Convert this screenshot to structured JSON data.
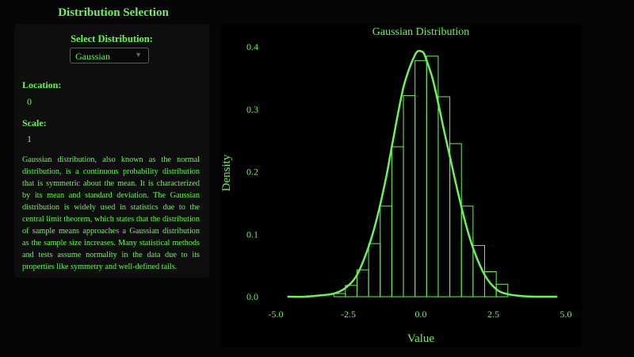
{
  "sidebar": {
    "title": "Distribution Selection",
    "select_label": "Select Distribution:",
    "selected_distribution": "Gaussian",
    "location_label": "Location:",
    "location_value": "0",
    "scale_label": "Scale:",
    "scale_value": "1",
    "description": "Gaussian distribution, also known as the normal distribution, is a continuous probability distribution that is symmetric about the mean. It is characterized by its mean and standard deviation. The Gaussian distribution is widely used in statistics due to the central limit theorem, which states that the distribution of sample means approaches a Gaussian distribution as the sample size increases. Many statistical methods and tests assume normality in the data due to its properties like symmetry and well-defined tails."
  },
  "icons": {
    "dropdown": "chevron-down-icon"
  },
  "colors": {
    "accent": "#6cf25a",
    "background": "#050505",
    "panel": "#0e0e0e"
  },
  "chart_data": {
    "type": "bar",
    "overlay": "line",
    "title": "Gaussian Distribution",
    "xlabel": "Value",
    "ylabel": "Density",
    "xlim": [
      -5.0,
      5.0
    ],
    "ylim": [
      0.0,
      0.4
    ],
    "xticks": [
      "-5.0",
      "-2.5",
      "0.0",
      "2.5",
      "5.0"
    ],
    "yticks": [
      "0.0",
      "0.1",
      "0.2",
      "0.3",
      "0.4"
    ],
    "grid": false,
    "histogram": {
      "bin_edges": [
        -3.0,
        -2.6,
        -2.2,
        -1.8,
        -1.4,
        -1.0,
        -0.6,
        -0.2,
        0.2,
        0.6,
        1.0,
        1.4,
        1.8,
        2.2,
        2.6,
        3.0
      ],
      "values": [
        0.005,
        0.018,
        0.043,
        0.085,
        0.145,
        0.24,
        0.322,
        0.378,
        0.385,
        0.32,
        0.245,
        0.145,
        0.082,
        0.04,
        0.02
      ]
    },
    "series": [
      {
        "x": [
          -4.6,
          -4.0,
          -3.5,
          -3.0,
          -2.6,
          -2.2,
          -1.8,
          -1.5,
          -1.2,
          -1.0,
          -0.8,
          -0.6,
          -0.4,
          -0.2,
          -0.1,
          0.0,
          0.1,
          0.2,
          0.4,
          0.6,
          0.8,
          1.0,
          1.2,
          1.5,
          1.8,
          2.2,
          2.6,
          3.0,
          3.5,
          4.0,
          4.7
        ],
        "values": [
          0.0,
          0.0,
          0.002,
          0.005,
          0.014,
          0.035,
          0.08,
          0.128,
          0.19,
          0.24,
          0.29,
          0.335,
          0.365,
          0.387,
          0.393,
          0.393,
          0.39,
          0.378,
          0.35,
          0.31,
          0.266,
          0.225,
          0.183,
          0.125,
          0.078,
          0.035,
          0.012,
          0.004,
          0.001,
          0.0,
          0.0
        ]
      }
    ]
  }
}
